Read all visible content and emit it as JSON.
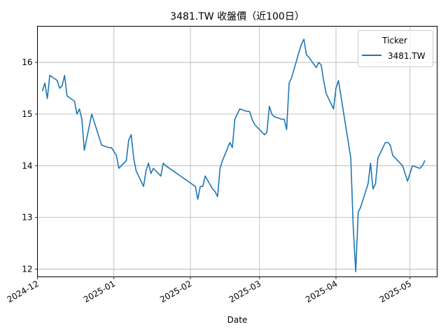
{
  "chart_data": {
    "type": "line",
    "title": "3481.TW 收盤價（近100日）",
    "xlabel": "Date",
    "ylabel": "",
    "xlim": [
      "2024-12-01",
      "2025-05-12"
    ],
    "ylim": [
      11.85,
      16.7
    ],
    "x_ticks": [
      "2024-12-01",
      "2025-01-01",
      "2025-02-01",
      "2025-03-01",
      "2025-04-01",
      "2025-05-01"
    ],
    "x_tick_labels": [
      "2024-12",
      "2025-01",
      "2025-02",
      "2025-03",
      "2025-04",
      "2025-05"
    ],
    "y_ticks": [
      12,
      13,
      14,
      15,
      16
    ],
    "y_tick_labels": [
      "12",
      "13",
      "14",
      "15",
      "16"
    ],
    "grid": true,
    "legend": {
      "title": "Ticker",
      "position": "top-right"
    },
    "colors": {
      "series": "#1f77b4",
      "grid": "#b0b0b0"
    },
    "series": [
      {
        "name": "3481.TW",
        "x": [
          "2024-12-03",
          "2024-12-04",
          "2024-12-05",
          "2024-12-06",
          "2024-12-09",
          "2024-12-10",
          "2024-12-11",
          "2024-12-12",
          "2024-12-13",
          "2024-12-16",
          "2024-12-17",
          "2024-12-18",
          "2024-12-19",
          "2024-12-20",
          "2024-12-23",
          "2024-12-24",
          "2024-12-25",
          "2024-12-26",
          "2024-12-27",
          "2024-12-30",
          "2024-12-31",
          "2025-01-02",
          "2025-01-03",
          "2025-01-06",
          "2025-01-07",
          "2025-01-08",
          "2025-01-09",
          "2025-01-10",
          "2025-01-13",
          "2025-01-14",
          "2025-01-15",
          "2025-01-16",
          "2025-01-17",
          "2025-01-20",
          "2025-01-21",
          "2025-01-22",
          "2025-02-03",
          "2025-02-04",
          "2025-02-05",
          "2025-02-06",
          "2025-02-07",
          "2025-02-10",
          "2025-02-11",
          "2025-02-12",
          "2025-02-13",
          "2025-02-14",
          "2025-02-17",
          "2025-02-18",
          "2025-02-19",
          "2025-02-20",
          "2025-02-21",
          "2025-02-24",
          "2025-02-25",
          "2025-02-26",
          "2025-02-27",
          "2025-03-03",
          "2025-03-04",
          "2025-03-05",
          "2025-03-06",
          "2025-03-07",
          "2025-03-10",
          "2025-03-11",
          "2025-03-12",
          "2025-03-13",
          "2025-03-14",
          "2025-03-17",
          "2025-03-18",
          "2025-03-19",
          "2025-03-20",
          "2025-03-21",
          "2025-03-24",
          "2025-03-25",
          "2025-03-26",
          "2025-03-27",
          "2025-03-28",
          "2025-03-31",
          "2025-04-01",
          "2025-04-02",
          "2025-04-07",
          "2025-04-08",
          "2025-04-09",
          "2025-04-10",
          "2025-04-11",
          "2025-04-14",
          "2025-04-15",
          "2025-04-16",
          "2025-04-17",
          "2025-04-18",
          "2025-04-21",
          "2025-04-22",
          "2025-04-23",
          "2025-04-24",
          "2025-04-25",
          "2025-04-28",
          "2025-04-29",
          "2025-04-30",
          "2025-05-02",
          "2025-05-05",
          "2025-05-06",
          "2025-05-07"
        ],
        "y": [
          15.45,
          15.6,
          15.3,
          15.75,
          15.65,
          15.5,
          15.55,
          15.75,
          15.35,
          15.25,
          15.0,
          15.1,
          14.9,
          14.3,
          15.0,
          14.85,
          14.7,
          14.55,
          14.4,
          14.35,
          14.35,
          14.2,
          13.95,
          14.1,
          14.5,
          14.6,
          14.15,
          13.9,
          13.6,
          13.9,
          14.05,
          13.85,
          13.95,
          13.8,
          14.05,
          14.0,
          13.6,
          13.35,
          13.6,
          13.6,
          13.8,
          13.55,
          13.5,
          13.4,
          13.95,
          14.1,
          14.45,
          14.35,
          14.9,
          15.0,
          15.1,
          15.05,
          15.05,
          14.9,
          14.8,
          14.6,
          14.65,
          15.15,
          15.0,
          14.95,
          14.9,
          14.9,
          14.7,
          15.6,
          15.7,
          16.2,
          16.35,
          16.45,
          16.15,
          16.1,
          15.9,
          16.0,
          15.95,
          15.65,
          15.4,
          15.1,
          15.5,
          15.65,
          14.15,
          12.8,
          11.95,
          13.1,
          13.2,
          13.65,
          14.05,
          13.55,
          13.65,
          14.15,
          14.45,
          14.45,
          14.4,
          14.2,
          14.15,
          14.0,
          13.85,
          13.7,
          14.0,
          13.95,
          14.0,
          14.1
        ]
      }
    ]
  }
}
